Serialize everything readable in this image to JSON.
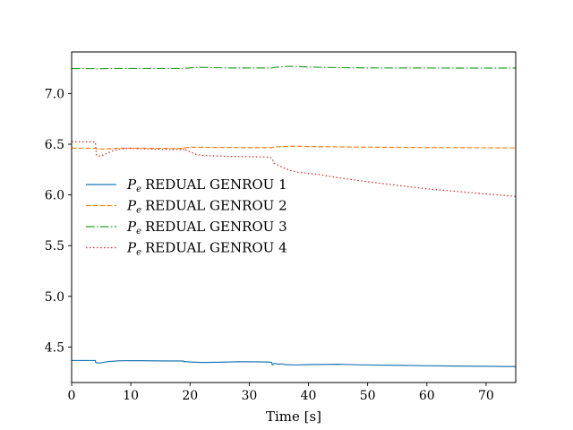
{
  "chart_data": {
    "type": "line",
    "title": "",
    "xlabel": "Time [s]",
    "ylabel": "",
    "xlim": [
      0,
      75
    ],
    "ylim": [
      4.15,
      7.41
    ],
    "xticks": [
      0,
      10,
      20,
      30,
      40,
      50,
      60,
      70
    ],
    "xtick_labels": [
      "0",
      "10",
      "20",
      "30",
      "40",
      "50",
      "60",
      "70"
    ],
    "yticks": [
      4.5,
      5.0,
      5.5,
      6.0,
      6.5,
      7.0
    ],
    "ytick_labels": [
      "4.5",
      "5.0",
      "5.5",
      "6.0",
      "6.5",
      "7.0"
    ],
    "grid": false,
    "legend_position": "center-left",
    "series": [
      {
        "name": "REDUAL GENROU 1",
        "color": "#1f77b4",
        "dash": "solid",
        "x": [
          0,
          4,
          4.1,
          4.6,
          5,
          6,
          8,
          10,
          12,
          15,
          18.9,
          19,
          19.1,
          20,
          22,
          25,
          28,
          30,
          33,
          33.8,
          33.9,
          34.2,
          34.6,
          35,
          35.5,
          36,
          38,
          40,
          45,
          50,
          55,
          60,
          65,
          70,
          75
        ],
        "y": [
          4.367,
          4.367,
          4.345,
          4.343,
          4.345,
          4.355,
          4.364,
          4.366,
          4.365,
          4.363,
          4.362,
          4.353,
          4.357,
          4.352,
          4.348,
          4.35,
          4.354,
          4.355,
          4.352,
          4.348,
          4.323,
          4.338,
          4.335,
          4.33,
          4.335,
          4.327,
          4.323,
          4.327,
          4.33,
          4.323,
          4.32,
          4.315,
          4.312,
          4.31,
          4.307
        ]
      },
      {
        "name": "REDUAL GENROU 2",
        "color": "#ff7f0e",
        "dash": "dashed",
        "x": [
          0,
          4,
          4.1,
          5,
          7,
          9,
          12,
          15,
          18.9,
          19,
          19.3,
          20,
          25,
          30,
          33.8,
          34,
          34.6,
          35,
          36,
          37,
          40,
          45,
          50,
          55,
          60,
          65,
          70,
          75
        ],
        "y": [
          6.461,
          6.461,
          6.455,
          6.452,
          6.458,
          6.461,
          6.46,
          6.459,
          6.458,
          6.463,
          6.466,
          6.47,
          6.468,
          6.467,
          6.467,
          6.47,
          6.475,
          6.476,
          6.478,
          6.48,
          6.477,
          6.474,
          6.471,
          6.469,
          6.467,
          6.466,
          6.465,
          6.464
        ]
      },
      {
        "name": "REDUAL GENROU 3",
        "color": "#2ca02c",
        "dash": "dashdot",
        "x": [
          0,
          4,
          4.1,
          5,
          8,
          12,
          15,
          18.9,
          19,
          20,
          21,
          22,
          24,
          27,
          30,
          33.8,
          34,
          35,
          36,
          37,
          38,
          40,
          43,
          46,
          50,
          55,
          60,
          65,
          70,
          75
        ],
        "y": [
          7.246,
          7.246,
          7.241,
          7.245,
          7.247,
          7.247,
          7.247,
          7.247,
          7.248,
          7.253,
          7.257,
          7.258,
          7.255,
          7.252,
          7.252,
          7.252,
          7.255,
          7.262,
          7.267,
          7.268,
          7.266,
          7.262,
          7.257,
          7.255,
          7.253,
          7.252,
          7.252,
          7.251,
          7.251,
          7.251
        ]
      },
      {
        "name": "REDUAL GENROU 4",
        "color": "#d62728",
        "dash": "dotted",
        "x": [
          0,
          4,
          4.2,
          4.5,
          5,
          6,
          7,
          8,
          9,
          10,
          12,
          15,
          18.9,
          19,
          19.2,
          20,
          21,
          22,
          24,
          27,
          30,
          33.5,
          33.8,
          34,
          34.2,
          35,
          36,
          37,
          38,
          40,
          42,
          45,
          50,
          55,
          60,
          65,
          70,
          75
        ],
        "y": [
          6.523,
          6.523,
          6.393,
          6.383,
          6.385,
          6.41,
          6.435,
          6.452,
          6.458,
          6.459,
          6.455,
          6.45,
          6.447,
          6.46,
          6.445,
          6.425,
          6.4,
          6.39,
          6.385,
          6.38,
          6.378,
          6.372,
          6.362,
          6.34,
          6.312,
          6.29,
          6.262,
          6.24,
          6.225,
          6.212,
          6.2,
          6.17,
          6.13,
          6.095,
          6.06,
          6.035,
          6.01,
          5.985
        ]
      }
    ]
  },
  "legend": {
    "symbol_base": "P",
    "symbol_subscript": "e"
  }
}
